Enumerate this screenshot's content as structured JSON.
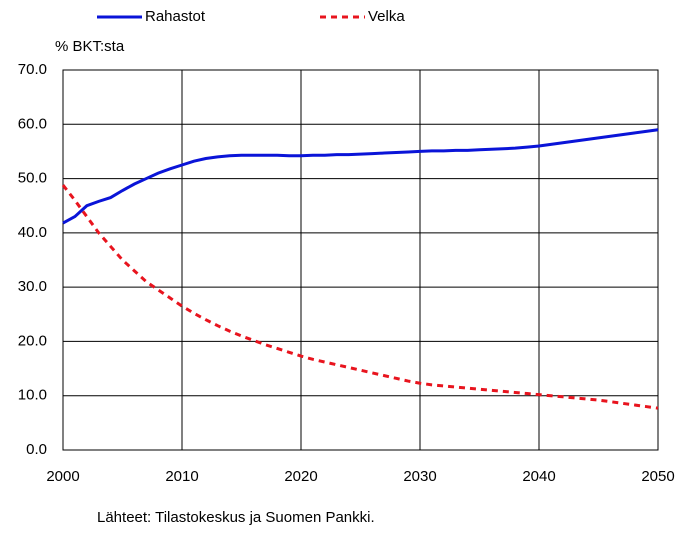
{
  "chart_data": {
    "type": "line",
    "y_label": "% BKT:sta",
    "note": "Lähteet: Tilastokeskus ja Suomen Pankki.",
    "legend": "top",
    "grid": true,
    "x": [
      2000,
      2001,
      2002,
      2003,
      2004,
      2005,
      2006,
      2007,
      2008,
      2009,
      2010,
      2011,
      2012,
      2013,
      2014,
      2015,
      2016,
      2017,
      2018,
      2019,
      2020,
      2021,
      2022,
      2023,
      2024,
      2025,
      2026,
      2027,
      2028,
      2029,
      2030,
      2031,
      2032,
      2033,
      2034,
      2035,
      2036,
      2037,
      2038,
      2039,
      2040,
      2041,
      2042,
      2043,
      2044,
      2045,
      2046,
      2047,
      2048,
      2049,
      2050
    ],
    "series": [
      {
        "name": "Rahastot",
        "color": "#0a14d8",
        "dash": false,
        "values": [
          41.8,
          43,
          45,
          45.8,
          46.5,
          47.8,
          49,
          50,
          51,
          51.8,
          52.5,
          53.2,
          53.7,
          54,
          54.2,
          54.3,
          54.3,
          54.3,
          54.3,
          54.2,
          54.2,
          54.3,
          54.3,
          54.4,
          54.4,
          54.5,
          54.6,
          54.7,
          54.8,
          54.9,
          55,
          55.1,
          55.1,
          55.2,
          55.2,
          55.3,
          55.4,
          55.5,
          55.6,
          55.8,
          56,
          56.3,
          56.6,
          56.9,
          57.2,
          57.5,
          57.8,
          58.1,
          58.4,
          58.7,
          59
        ]
      },
      {
        "name": "Velka",
        "color": "#e8141e",
        "dash": true,
        "values": [
          48.8,
          46,
          43,
          40,
          37.5,
          35,
          33,
          31,
          29.5,
          28,
          26.5,
          25.2,
          24,
          22.9,
          21.9,
          21,
          20.2,
          19.4,
          18.7,
          18,
          17.3,
          16.7,
          16.2,
          15.7,
          15.2,
          14.7,
          14.2,
          13.7,
          13.2,
          12.7,
          12.3,
          12,
          11.8,
          11.6,
          11.4,
          11.2,
          11,
          10.8,
          10.6,
          10.4,
          10.2,
          10,
          9.8,
          9.6,
          9.4,
          9.2,
          8.9,
          8.6,
          8.3,
          8,
          7.7
        ]
      }
    ],
    "xlim": [
      2000,
      2050
    ],
    "xticks": [
      2000,
      2010,
      2020,
      2030,
      2040,
      2050
    ],
    "ylim": [
      0,
      70
    ],
    "yticks": [
      {
        "value": 0,
        "label": "0.0"
      },
      {
        "value": 10,
        "label": "10.0"
      },
      {
        "value": 20,
        "label": "20.0"
      },
      {
        "value": 30,
        "label": "30.0"
      },
      {
        "value": 40,
        "label": "40.0"
      },
      {
        "value": 50,
        "label": "50.0"
      },
      {
        "value": 60,
        "label": "60.0"
      },
      {
        "value": 70,
        "label": "70.0"
      }
    ]
  }
}
